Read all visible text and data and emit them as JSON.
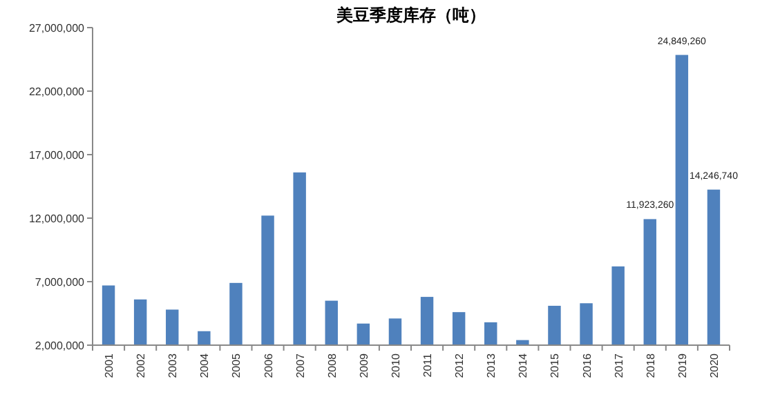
{
  "chart_data": {
    "type": "bar",
    "title": "美豆季度库存（吨）",
    "categories": [
      "2001",
      "2002",
      "2003",
      "2004",
      "2005",
      "2006",
      "2007",
      "2008",
      "2009",
      "2010",
      "2011",
      "2012",
      "2013",
      "2014",
      "2015",
      "2016",
      "2017",
      "2018",
      "2019",
      "2020"
    ],
    "values": [
      6700000,
      5600000,
      4800000,
      3100000,
      6900000,
      12200000,
      15600000,
      5500000,
      3700000,
      4100000,
      5800000,
      4600000,
      3800000,
      2400000,
      5100000,
      5300000,
      8200000,
      11923260,
      24849260,
      14246740
    ],
    "value_labels": [
      null,
      null,
      null,
      null,
      null,
      null,
      null,
      null,
      null,
      null,
      null,
      null,
      null,
      null,
      null,
      null,
      null,
      "11,923,260",
      "24,849,260",
      "14,246,740"
    ],
    "color": "#4f81bd",
    "ylim": [
      2000000,
      27000000
    ],
    "yticks": [
      {
        "value": 2000000,
        "label": "2,000,000"
      },
      {
        "value": 7000000,
        "label": "7,000,000"
      },
      {
        "value": 12000000,
        "label": "12,000,000"
      },
      {
        "value": 17000000,
        "label": "17,000,000"
      },
      {
        "value": 22000000,
        "label": "22,000,000"
      },
      {
        "value": 27000000,
        "label": "27,000,000"
      }
    ],
    "grid": false
  }
}
